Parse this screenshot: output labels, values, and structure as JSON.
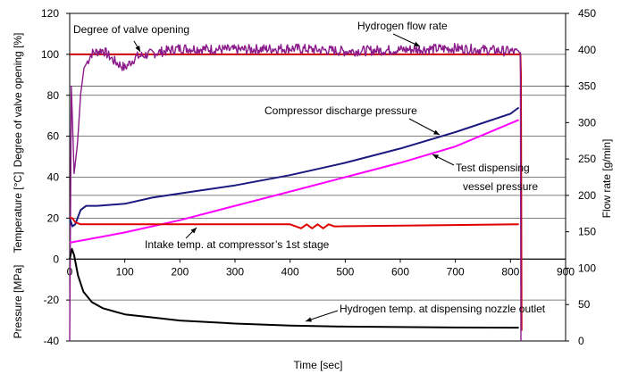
{
  "chart_data": {
    "type": "line",
    "xlabel": "Time [sec]",
    "ylabel_left_segments": [
      "Degree of valve opening [%]",
      "Temperature [°C]",
      "Pressure [MPa]"
    ],
    "ylabel_right": "Flow rate [g/min]",
    "xlim": [
      0,
      900
    ],
    "ylim_left": [
      -40,
      120
    ],
    "ylim_right": [
      0,
      450
    ],
    "x_ticks": [
      "0",
      "100",
      "200",
      "300",
      "400",
      "500",
      "600",
      "700",
      "800",
      "900"
    ],
    "y_left_ticks": [
      "-40",
      "-20",
      "0",
      "20",
      "40",
      "60",
      "80",
      "100",
      "120"
    ],
    "y_right_ticks": [
      "0",
      "50",
      "100",
      "150",
      "200",
      "250",
      "300",
      "350",
      "400",
      "450"
    ],
    "grid": "horizontal",
    "series": [
      {
        "name": "Degree of valve opening",
        "axis": "left",
        "color": "#cc0000",
        "x": [
          0,
          5,
          818,
          819,
          820
        ],
        "y": [
          100,
          100,
          100,
          90,
          -35
        ]
      },
      {
        "name": "Hydrogen flow rate",
        "axis": "right",
        "color": "#8b1a8b",
        "x": [
          0,
          3,
          8,
          14,
          20,
          26,
          40,
          60,
          80,
          100,
          120,
          150,
          200,
          300,
          400,
          500,
          600,
          700,
          800,
          815,
          818,
          819
        ],
        "y": [
          0,
          350,
          230,
          270,
          340,
          375,
          395,
          400,
          385,
          375,
          390,
          395,
          402,
          400,
          402,
          398,
          400,
          402,
          398,
          396,
          396,
          0
        ]
      },
      {
        "name": "Compressor discharge pressure",
        "axis": "left",
        "color": "#1a1a80",
        "x": [
          0,
          5,
          10,
          20,
          30,
          50,
          100,
          150,
          200,
          300,
          400,
          500,
          600,
          700,
          800,
          815
        ],
        "y": [
          20,
          16,
          17,
          24,
          26,
          26,
          27,
          30,
          32,
          36,
          41,
          47,
          54,
          62,
          71,
          74
        ]
      },
      {
        "name": "Test dispensing vessel pressure",
        "axis": "left",
        "color": "#ff00ff",
        "x": [
          0,
          100,
          200,
          300,
          400,
          500,
          600,
          700,
          815
        ],
        "y": [
          8,
          13,
          19,
          26,
          33,
          40,
          47,
          55,
          68
        ]
      },
      {
        "name": "Intake temp. at compressor’s 1st stage",
        "axis": "left",
        "color": "#e00000",
        "x": [
          0,
          5,
          10,
          20,
          100,
          400,
          420,
          430,
          440,
          450,
          460,
          470,
          480,
          815
        ],
        "y": [
          20,
          20,
          18,
          17,
          17,
          17,
          15,
          17,
          15,
          17,
          15,
          17,
          16,
          17
        ]
      },
      {
        "name": "Hydrogen temp. at dispensing nozzle outlet",
        "axis": "left",
        "color": "#000000",
        "x": [
          0,
          4,
          8,
          15,
          25,
          40,
          60,
          100,
          150,
          200,
          300,
          400,
          500,
          600,
          700,
          815
        ],
        "y": [
          0,
          5,
          2,
          -8,
          -16,
          -21,
          -24,
          -27,
          -28.5,
          -30,
          -31.5,
          -32.5,
          -33,
          -33.2,
          -33.4,
          -33.5
        ]
      }
    ],
    "annotations": [
      "Degree of valve opening",
      "Hydrogen flow rate",
      "Compressor discharge pressure",
      "Test dispensing",
      "vessel pressure",
      "Intake temp. at compressor’s 1st stage",
      "Hydrogen temp. at dispensing nozzle outlet"
    ]
  }
}
